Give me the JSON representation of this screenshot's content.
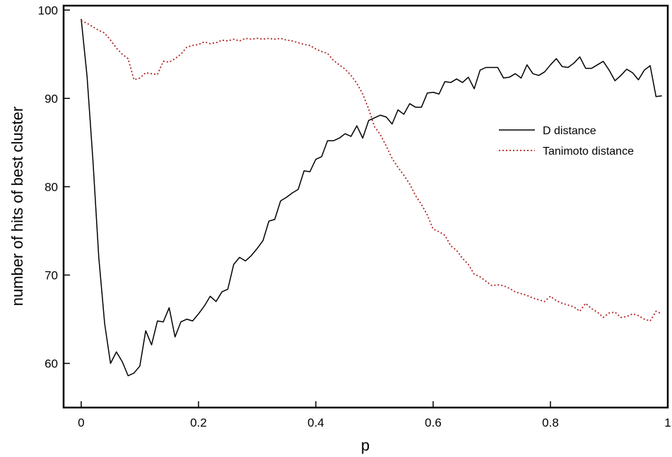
{
  "chart_data": {
    "type": "line",
    "xlabel": "p",
    "ylabel": "number of hits of best cluster",
    "xlim": [
      -0.03,
      1.0
    ],
    "ylim": [
      55,
      100.5
    ],
    "xticks": [
      0,
      0.2,
      0.4,
      0.6,
      0.8,
      1
    ],
    "xtick_labels": [
      "0",
      "0.2",
      "0.4",
      "0.6",
      "0.8",
      "1"
    ],
    "yticks": [
      60,
      70,
      80,
      90,
      100
    ],
    "ytick_labels": [
      "60",
      "70",
      "80",
      "90",
      "100"
    ],
    "grid": false,
    "legend_position": "right",
    "x": [
      0.0,
      0.01,
      0.02,
      0.03,
      0.04,
      0.05,
      0.06,
      0.07,
      0.08,
      0.09,
      0.1,
      0.11,
      0.12,
      0.13,
      0.14,
      0.15,
      0.16,
      0.17,
      0.18,
      0.19,
      0.2,
      0.21,
      0.22,
      0.23,
      0.24,
      0.25,
      0.26,
      0.27,
      0.28,
      0.29,
      0.3,
      0.31,
      0.32,
      0.33,
      0.34,
      0.35,
      0.36,
      0.37,
      0.38,
      0.39,
      0.4,
      0.41,
      0.42,
      0.43,
      0.44,
      0.45,
      0.46,
      0.47,
      0.48,
      0.49,
      0.5,
      0.51,
      0.52,
      0.53,
      0.54,
      0.55,
      0.56,
      0.57,
      0.58,
      0.59,
      0.6,
      0.61,
      0.62,
      0.63,
      0.64,
      0.65,
      0.66,
      0.67,
      0.68,
      0.69,
      0.7,
      0.71,
      0.72,
      0.73,
      0.74,
      0.75,
      0.76,
      0.77,
      0.78,
      0.79,
      0.8,
      0.81,
      0.82,
      0.83,
      0.84,
      0.85,
      0.86,
      0.87,
      0.88,
      0.89,
      0.9,
      0.91,
      0.92,
      0.93,
      0.94,
      0.95,
      0.96,
      0.97,
      0.98,
      0.99
    ],
    "series": [
      {
        "name": "D distance",
        "style": "solid",
        "color": "#000000",
        "values": [
          99.0,
          92.5,
          83.0,
          72.0,
          64.5,
          60.0,
          61.3,
          60.2,
          58.6,
          58.9,
          59.7,
          63.7,
          62.1,
          64.8,
          64.7,
          66.3,
          63.0,
          64.7,
          65.0,
          64.8,
          65.6,
          66.5,
          67.6,
          67.0,
          68.1,
          68.4,
          71.2,
          72.0,
          71.6,
          72.2,
          73.0,
          73.9,
          76.1,
          76.3,
          78.4,
          78.8,
          79.3,
          79.7,
          81.8,
          81.7,
          83.1,
          83.4,
          85.2,
          85.2,
          85.5,
          86.0,
          85.7,
          86.9,
          85.5,
          87.5,
          87.8,
          88.1,
          87.9,
          87.1,
          88.7,
          88.2,
          89.4,
          89.0,
          89.0,
          90.6,
          90.7,
          90.5,
          91.9,
          91.8,
          92.2,
          91.8,
          92.4,
          91.1,
          93.2,
          93.5,
          93.5,
          93.5,
          92.3,
          92.4,
          92.8,
          92.3,
          93.8,
          92.8,
          92.6,
          93.0,
          93.8,
          94.5,
          93.6,
          93.5,
          94.0,
          94.7,
          93.4,
          93.4,
          93.8,
          94.2,
          93.2,
          92.0,
          92.6,
          93.3,
          92.9,
          92.1,
          93.2,
          93.7,
          90.2,
          90.3
        ]
      },
      {
        "name": "Tanimoto distance",
        "style": "dotted",
        "color": "#b22222",
        "values": [
          98.8,
          98.5,
          98.1,
          97.7,
          97.4,
          96.6,
          95.7,
          95.0,
          94.5,
          92.1,
          92.3,
          92.9,
          92.8,
          92.7,
          94.2,
          94.1,
          94.5,
          95.0,
          95.8,
          96.0,
          96.1,
          96.4,
          96.2,
          96.3,
          96.6,
          96.5,
          96.7,
          96.5,
          96.8,
          96.7,
          96.8,
          96.7,
          96.8,
          96.7,
          96.8,
          96.6,
          96.5,
          96.3,
          96.1,
          96.0,
          95.6,
          95.3,
          95.1,
          94.3,
          93.8,
          93.3,
          92.6,
          91.7,
          90.5,
          88.8,
          86.8,
          85.9,
          84.6,
          83.2,
          82.2,
          81.3,
          80.3,
          79.0,
          78.0,
          76.8,
          75.2,
          74.9,
          74.5,
          73.3,
          72.8,
          71.9,
          71.2,
          70.1,
          69.8,
          69.3,
          68.8,
          68.9,
          68.8,
          68.5,
          68.1,
          67.9,
          67.7,
          67.4,
          67.2,
          67.0,
          67.6,
          67.1,
          66.8,
          66.6,
          66.4,
          65.9,
          66.8,
          66.2,
          65.8,
          65.2,
          65.7,
          65.8,
          65.2,
          65.3,
          65.6,
          65.4,
          65.0,
          64.8,
          65.9,
          65.6
        ]
      }
    ]
  }
}
